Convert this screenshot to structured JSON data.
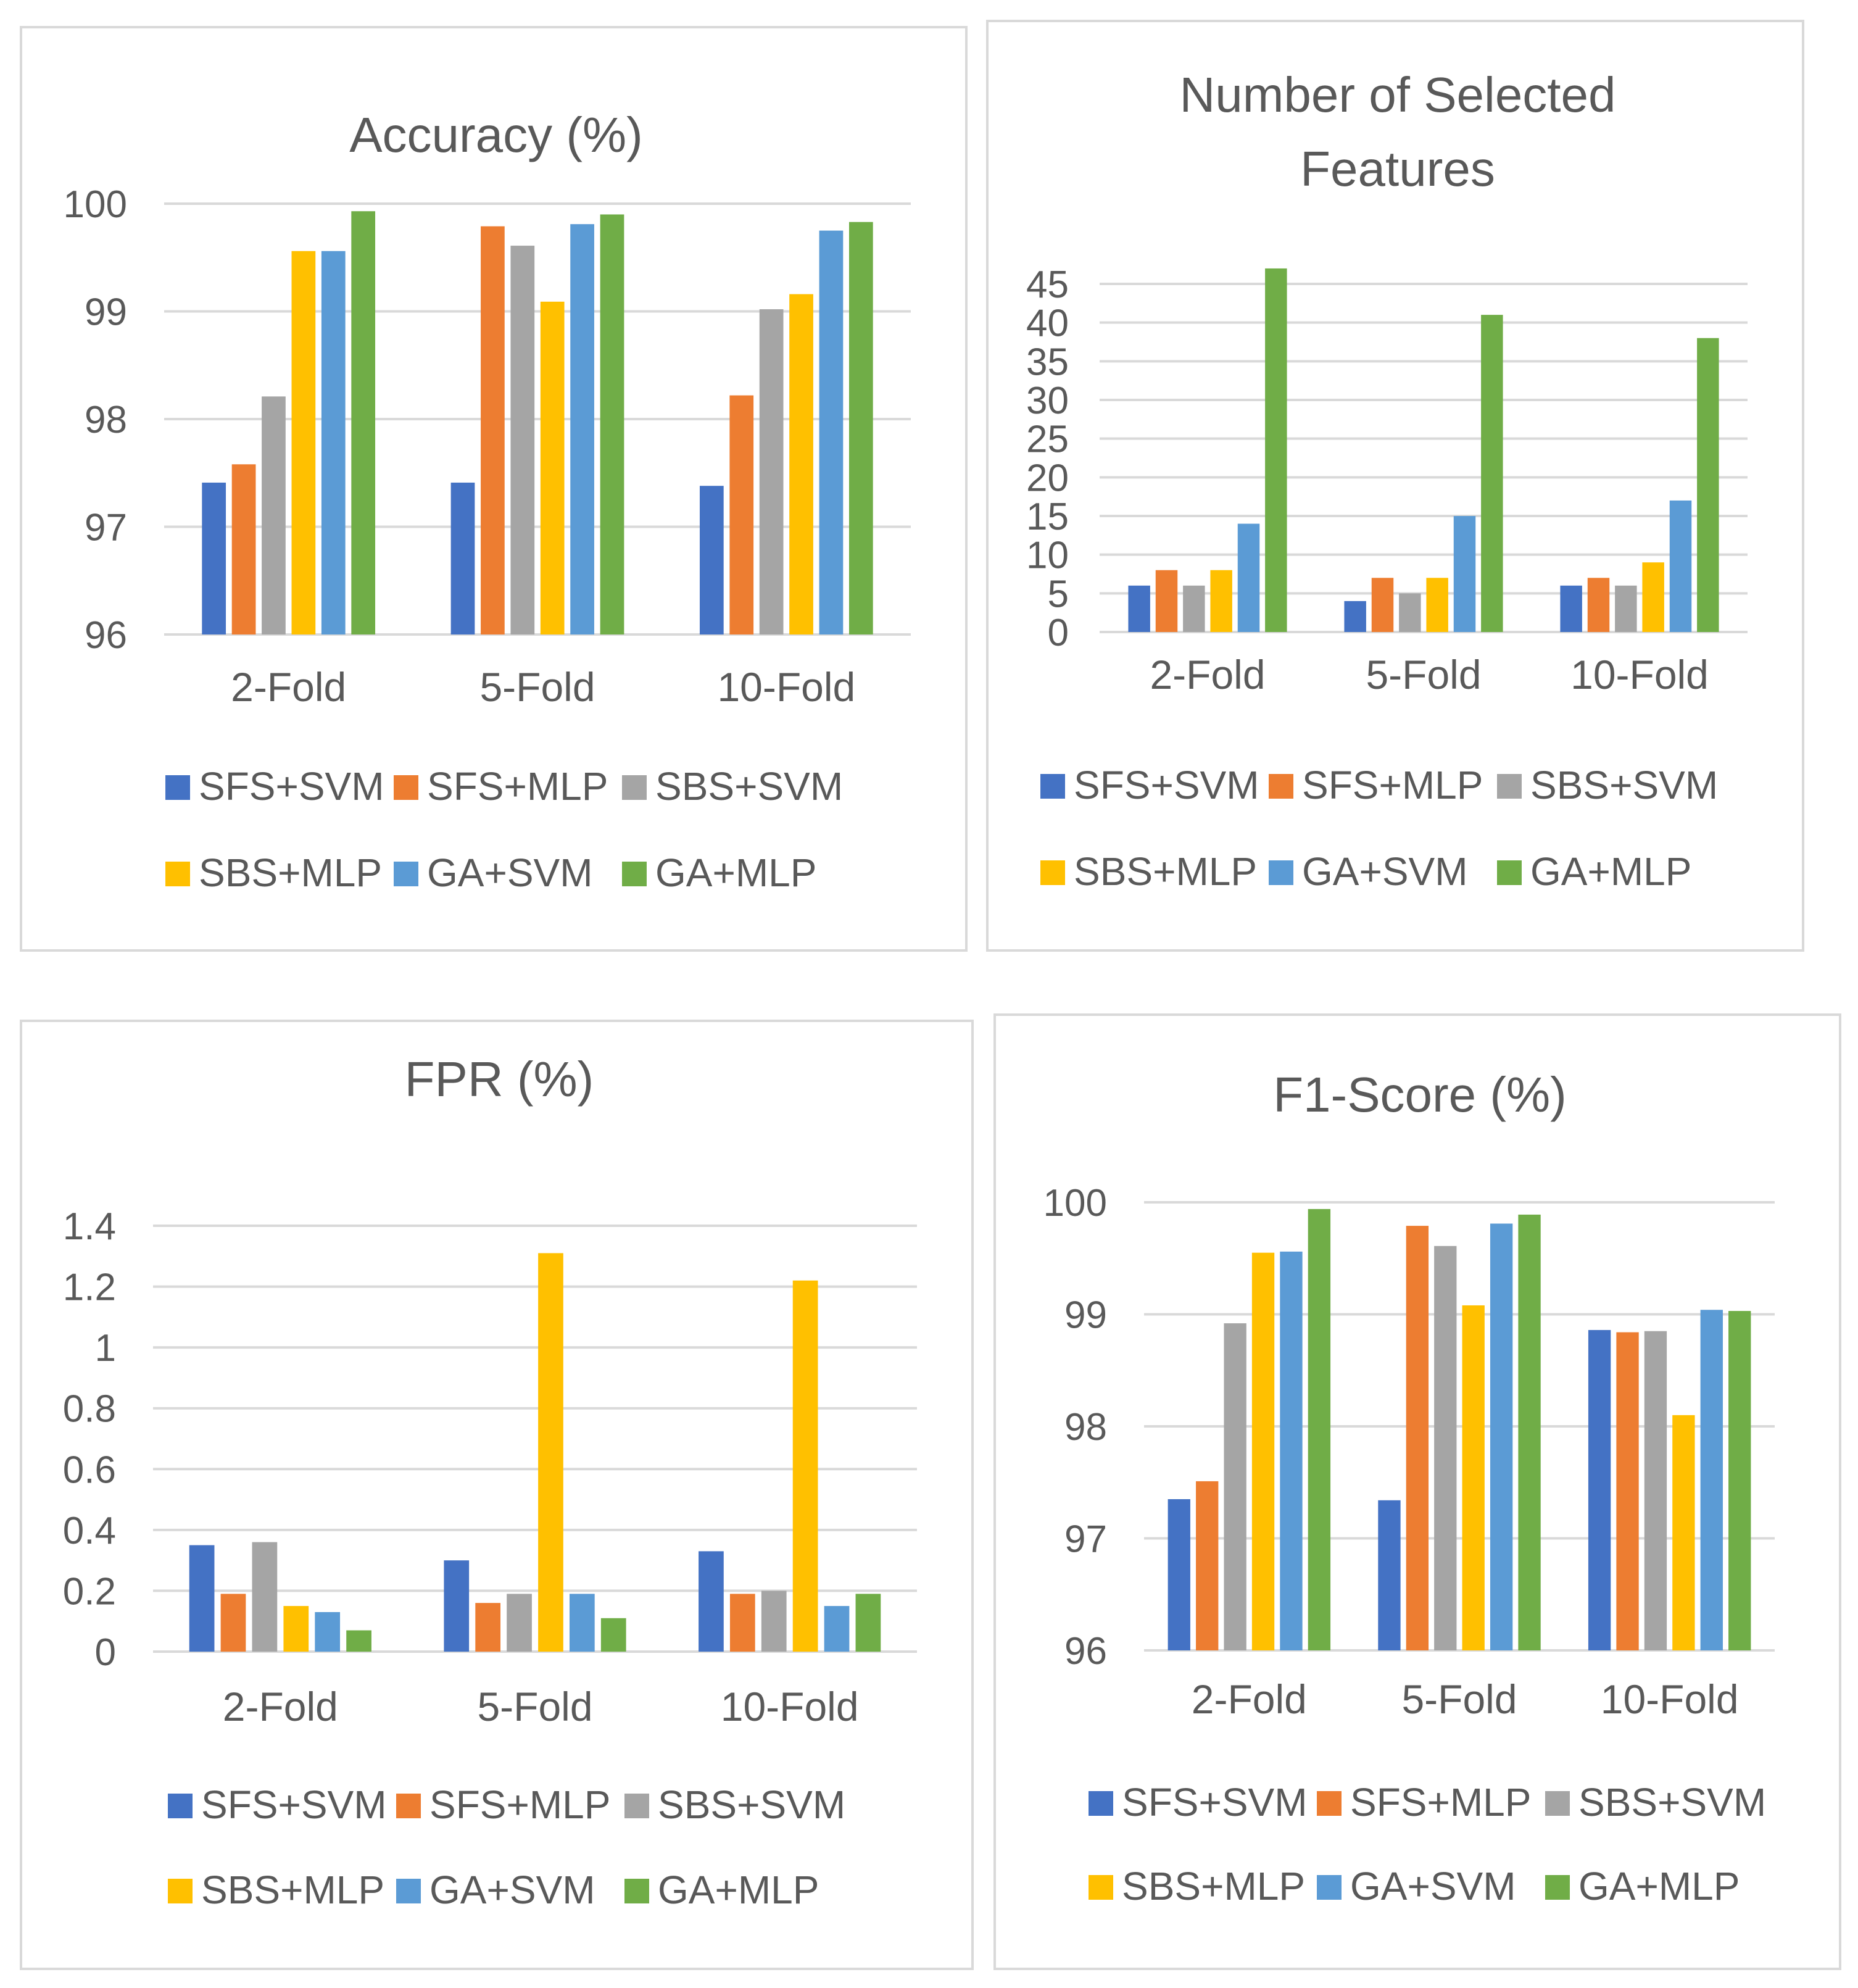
{
  "chart_data": [
    {
      "type": "bar",
      "title": "Accuracy (%)",
      "title_lines": [
        "Accuracy (%)"
      ],
      "categories": [
        "2-Fold",
        "5-Fold",
        "10-Fold"
      ],
      "ylim": [
        96,
        100
      ],
      "yticks": [
        "96",
        "97",
        "98",
        "99",
        "100"
      ],
      "series": [
        {
          "name": "SFS+SVM",
          "color": "#4472c4",
          "values": [
            97.41,
            97.41,
            97.38
          ]
        },
        {
          "name": "SFS+MLP",
          "color": "#ed7d31",
          "values": [
            97.58,
            99.79,
            98.22
          ]
        },
        {
          "name": "SBS+SVM",
          "color": "#a5a5a5",
          "values": [
            98.21,
            99.61,
            99.02
          ]
        },
        {
          "name": "SBS+MLP",
          "color": "#ffc000",
          "values": [
            99.56,
            99.09,
            99.16
          ]
        },
        {
          "name": "GA+SVM",
          "color": "#5b9bd5",
          "values": [
            99.56,
            99.81,
            99.75
          ]
        },
        {
          "name": "GA+MLP",
          "color": "#70ad47",
          "values": [
            99.93,
            99.9,
            99.83
          ]
        }
      ]
    },
    {
      "type": "bar",
      "title": "Number of Selected Features",
      "title_lines": [
        "Number of Selected",
        "Features"
      ],
      "categories": [
        "2-Fold",
        "5-Fold",
        "10-Fold"
      ],
      "ylim": [
        0,
        45
      ],
      "yticks": [
        "0",
        "5",
        "10",
        "15",
        "20",
        "25",
        "30",
        "35",
        "40",
        "45"
      ],
      "series": [
        {
          "name": "SFS+SVM",
          "color": "#4472c4",
          "values": [
            6,
            4,
            6
          ]
        },
        {
          "name": "SFS+MLP",
          "color": "#ed7d31",
          "values": [
            8,
            7,
            7
          ]
        },
        {
          "name": "SBS+SVM",
          "color": "#a5a5a5",
          "values": [
            6,
            5,
            6
          ]
        },
        {
          "name": "SBS+MLP",
          "color": "#ffc000",
          "values": [
            8,
            7,
            9
          ]
        },
        {
          "name": "GA+SVM",
          "color": "#5b9bd5",
          "values": [
            14,
            15,
            17
          ]
        },
        {
          "name": "GA+MLP",
          "color": "#70ad47",
          "values": [
            47,
            41,
            38
          ]
        }
      ]
    },
    {
      "type": "bar",
      "title": "FPR (%)",
      "title_lines": [
        "FPR (%)"
      ],
      "categories": [
        "2-Fold",
        "5-Fold",
        "10-Fold"
      ],
      "ylim": [
        0,
        1.4
      ],
      "yticks": [
        "0",
        "0.2",
        "0.4",
        "0.6",
        "0.8",
        "1",
        "1.2",
        "1.4"
      ],
      "series": [
        {
          "name": "SFS+SVM",
          "color": "#4472c4",
          "values": [
            0.35,
            0.3,
            0.33
          ]
        },
        {
          "name": "SFS+MLP",
          "color": "#ed7d31",
          "values": [
            0.19,
            0.16,
            0.19
          ]
        },
        {
          "name": "SBS+SVM",
          "color": "#a5a5a5",
          "values": [
            0.36,
            0.19,
            0.2
          ]
        },
        {
          "name": "SBS+MLP",
          "color": "#ffc000",
          "values": [
            0.15,
            1.31,
            1.22
          ]
        },
        {
          "name": "GA+SVM",
          "color": "#5b9bd5",
          "values": [
            0.13,
            0.19,
            0.15
          ]
        },
        {
          "name": "GA+MLP",
          "color": "#70ad47",
          "values": [
            0.07,
            0.11,
            0.19
          ]
        }
      ]
    },
    {
      "type": "bar",
      "title": "F1-Score (%)",
      "title_lines": [
        "F1-Score (%)"
      ],
      "categories": [
        "2-Fold",
        "5-Fold",
        "10-Fold"
      ],
      "ylim": [
        96,
        100
      ],
      "yticks": [
        "96",
        "97",
        "98",
        "99",
        "100"
      ],
      "series": [
        {
          "name": "SFS+SVM",
          "color": "#4472c4",
          "values": [
            97.35,
            97.34,
            98.86
          ]
        },
        {
          "name": "SFS+MLP",
          "color": "#ed7d31",
          "values": [
            97.51,
            99.79,
            98.84
          ]
        },
        {
          "name": "SBS+SVM",
          "color": "#a5a5a5",
          "values": [
            98.92,
            99.61,
            98.85
          ]
        },
        {
          "name": "SBS+MLP",
          "color": "#ffc000",
          "values": [
            99.55,
            99.08,
            98.1
          ]
        },
        {
          "name": "GA+SVM",
          "color": "#5b9bd5",
          "values": [
            99.56,
            99.81,
            99.04
          ]
        },
        {
          "name": "GA+MLP",
          "color": "#70ad47",
          "values": [
            99.94,
            99.89,
            99.03
          ]
        }
      ]
    }
  ]
}
